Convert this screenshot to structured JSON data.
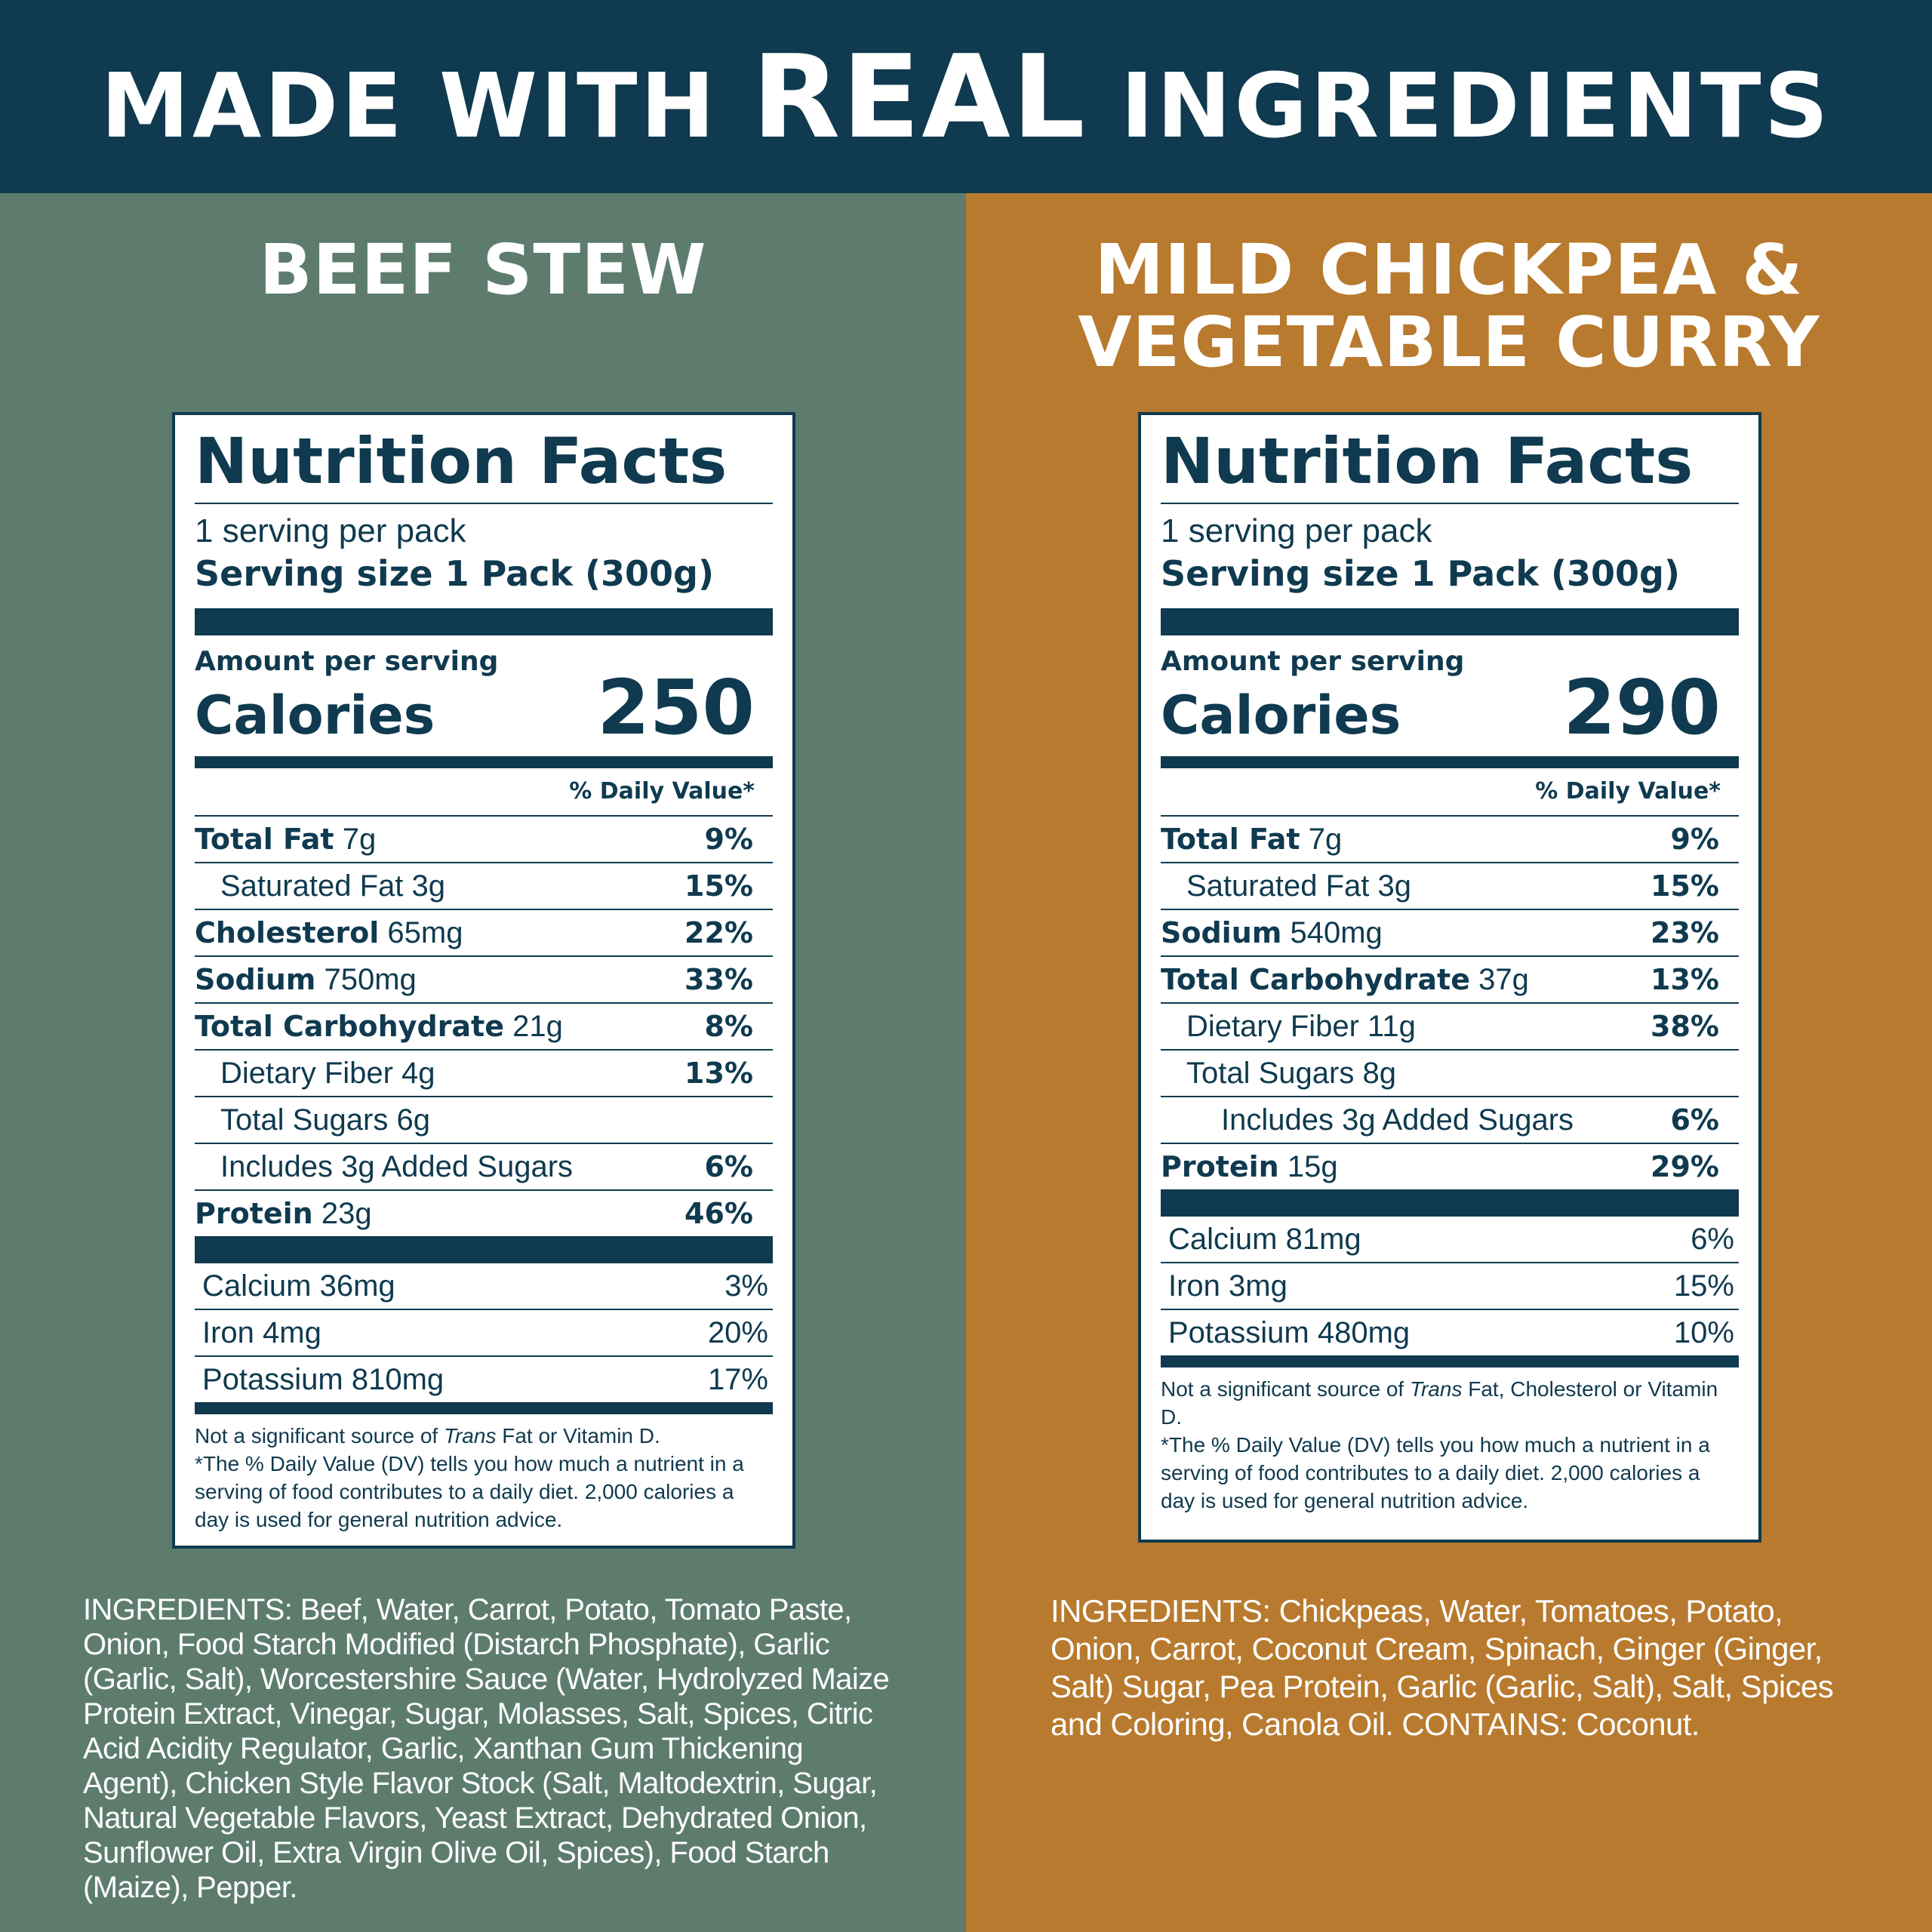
{
  "banner": {
    "lead": "MADE WITH",
    "strong": "REAL",
    "tail": "INGREDIENTS",
    "bg": "#0f3a4f"
  },
  "colors": {
    "label_ink": "#0f3a4f",
    "left_panel": "#5d7c6e",
    "right_panel": "#b87a2e"
  },
  "left": {
    "product_title_line1": "BEEF STEW",
    "label": {
      "title": "Nutrition Facts",
      "servings": "1 serving per pack",
      "serving_size": "Serving size 1 Pack (300g)",
      "amount_label": "Amount per serving",
      "calories_label": "Calories",
      "calories": "250",
      "dv_header": "% Daily Value*",
      "nutrients": [
        {
          "name": "Total Fat",
          "amount": "7g",
          "pct": "9%"
        },
        {
          "name": "",
          "amount": "Saturated Fat 3g",
          "pct": "15%"
        },
        {
          "name": "Cholesterol",
          "amount": "65mg",
          "pct": "22%"
        },
        {
          "name": "Sodium",
          "amount": "750mg",
          "pct": "33%"
        },
        {
          "name": "Total Carbohydrate",
          "amount": "21g",
          "pct": "8%"
        },
        {
          "name": "",
          "amount": "Dietary Fiber 4g",
          "pct": "13%"
        },
        {
          "name": "",
          "amount": "Total Sugars 6g",
          "pct": ""
        },
        {
          "name": "",
          "amount": "Includes 3g Added Sugars",
          "pct": "6%"
        },
        {
          "name": "Protein",
          "amount": "23g",
          "pct": "46%"
        }
      ],
      "vitamins": [
        {
          "label": "Calcium 36mg",
          "pct": "3%"
        },
        {
          "label": "Iron 4mg",
          "pct": "20%"
        },
        {
          "label": "Potassium 810mg",
          "pct": "17%"
        }
      ],
      "footnote_pre": "Not a significant source of ",
      "footnote_trans": "Trans",
      "footnote_post": " Fat or Vitamin D.",
      "footnote_dv": "*The % Daily Value (DV) tells you how much a nutrient in a serving of food contributes to a daily diet. 2,000 calories a day is used for general nutrition advice."
    },
    "ingredients": "INGREDIENTS: Beef, Water, Carrot, Potato, Tomato Paste, Onion, Food Starch Modified (Distarch Phosphate), Garlic (Garlic, Salt), Worcestershire Sauce (Water, Hydrolyzed Maize Protein Extract, Vinegar, Sugar, Molasses, Salt, Spices, Citric Acid Acidity Regulator, Garlic, Xanthan Gum Thickening Agent), Chicken Style Flavor Stock (Salt, Maltodextrin, Sugar, Natural Vegetable Flavors, Yeast Extract, Dehydrated Onion, Sunflower Oil, Extra Virgin Olive Oil, Spices), Food Starch (Maize), Pepper."
  },
  "right": {
    "product_title_line1": "MILD CHICKPEA &",
    "product_title_line2": "VEGETABLE CURRY",
    "label": {
      "title": "Nutrition Facts",
      "servings": "1 serving per pack",
      "serving_size": "Serving size 1 Pack (300g)",
      "amount_label": "Amount per serving",
      "calories_label": "Calories",
      "calories": "290",
      "dv_header": "% Daily Value*",
      "nutrients": [
        {
          "name": "Total Fat",
          "amount": "7g",
          "pct": "9%"
        },
        {
          "name": "",
          "amount": "Saturated Fat 3g",
          "pct": "15%"
        },
        {
          "name": "Sodium",
          "amount": "540mg",
          "pct": "23%"
        },
        {
          "name": "Total Carbohydrate",
          "amount": "37g",
          "pct": "13%"
        },
        {
          "name": "",
          "amount": "Dietary Fiber 11g",
          "pct": "38%"
        },
        {
          "name": "",
          "amount": "Total Sugars 8g",
          "pct": ""
        },
        {
          "name": "",
          "amount": "Includes 3g Added Sugars",
          "pct": "6%"
        },
        {
          "name": "Protein",
          "amount": "15g",
          "pct": "29%"
        }
      ],
      "vitamins": [
        {
          "label": "Calcium 81mg",
          "pct": "6%"
        },
        {
          "label": "Iron 3mg",
          "pct": "15%"
        },
        {
          "label": "Potassium 480mg",
          "pct": "10%"
        }
      ],
      "footnote_pre": "Not a significant source of ",
      "footnote_trans": "Trans",
      "footnote_post": " Fat, Cholesterol or Vitamin D.",
      "footnote_dv": "*The % Daily Value (DV) tells you how much a nutrient in a serving of food contributes to a daily diet. 2,000 calories a day is used for general nutrition advice."
    },
    "ingredients": "INGREDIENTS: Chickpeas, Water, Tomatoes, Potato, Onion, Carrot, Coconut Cream, Spinach, Ginger (Ginger, Salt) Sugar, Pea Protein, Garlic (Garlic, Salt), Salt, Spices and Coloring, Canola Oil. CONTAINS: Coconut."
  }
}
